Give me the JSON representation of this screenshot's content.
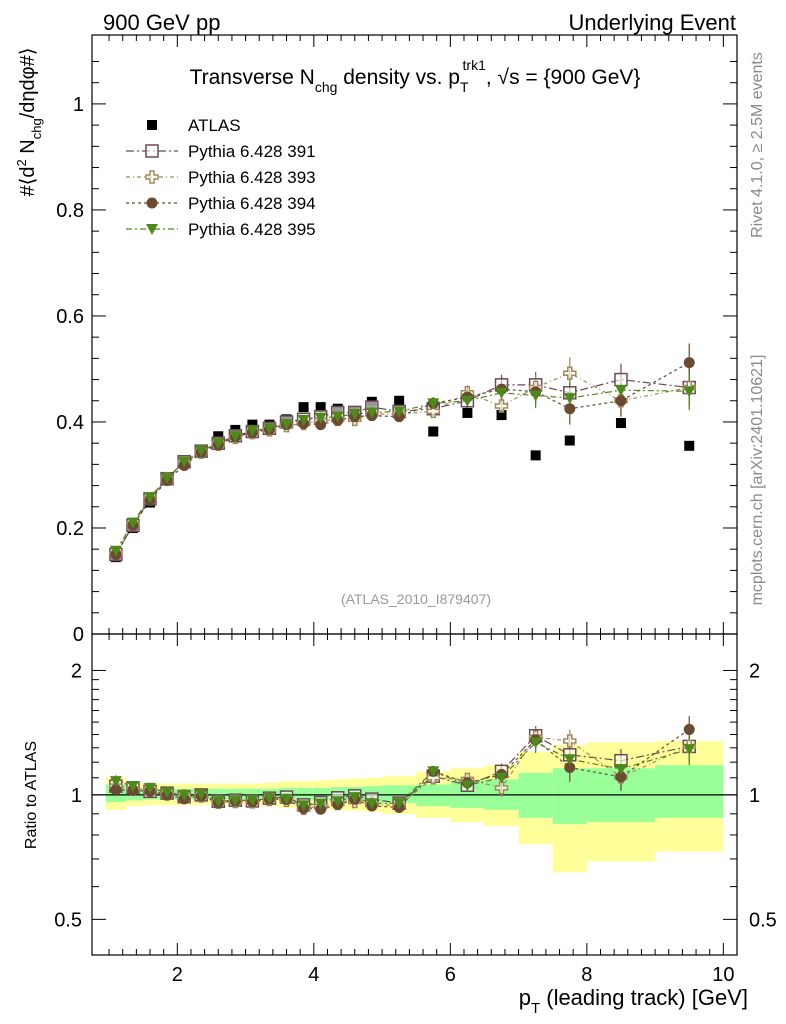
{
  "header": {
    "left": "900 GeV pp",
    "right": "Underlying Event"
  },
  "side_labels": {
    "rivet": "Rivet 4.1.0, ≥ 2.5M events",
    "mcplots": "mcplots.cern.ch [arXiv:2401.10621]"
  },
  "chart_data": [
    {
      "type": "scatter",
      "panel": "main",
      "title_parts": {
        "t1": "Transverse N",
        "t1_sub": "chg",
        "t2": " density vs. p",
        "t2_sub": "T",
        "t2_sup": "trk1",
        "t3": ", √s = {900 GeV}"
      },
      "ylabel_parts": {
        "p1": "#⟨d",
        "p1_sup": "2",
        "p2": " N",
        "p2_sub": "chg",
        "p3": "/dηdφ#⟩"
      },
      "analysis_tag": "(ATLAS_2010_I879407)",
      "xlim": [
        0.75,
        10.2
      ],
      "ylim": [
        0,
        1.13
      ],
      "yticks": [
        0,
        0.2,
        0.4,
        0.6,
        0.8,
        1
      ],
      "ytick_labels": [
        "0",
        "0.2",
        "0.4",
        "0.6",
        "0.8",
        "1"
      ],
      "x": [
        1.1,
        1.35,
        1.6,
        1.85,
        2.1,
        2.35,
        2.6,
        2.85,
        3.1,
        3.35,
        3.6,
        3.85,
        4.1,
        4.35,
        4.6,
        4.85,
        5.25,
        5.75,
        6.25,
        6.75,
        7.25,
        7.75,
        8.5,
        9.5
      ],
      "series": [
        {
          "name": "ATLAS",
          "marker": "filled-square",
          "color": "#000000",
          "values": [
            0.145,
            0.2,
            0.248,
            0.29,
            0.325,
            0.345,
            0.373,
            0.385,
            0.395,
            0.395,
            0.405,
            0.428,
            0.428,
            0.425,
            0.42,
            0.438,
            0.44,
            0.382,
            0.417,
            0.413,
            0.337,
            0.365,
            0.398,
            0.355
          ]
        },
        {
          "name": "Pythia 6.428 391",
          "marker": "open-square",
          "color": "#6b4a5a",
          "values": [
            0.15,
            0.205,
            0.255,
            0.293,
            0.325,
            0.345,
            0.36,
            0.374,
            0.382,
            0.388,
            0.4,
            0.405,
            0.41,
            0.418,
            0.418,
            0.428,
            0.42,
            0.425,
            0.44,
            0.47,
            0.47,
            0.455,
            0.48,
            0.465
          ]
        },
        {
          "name": "Pythia 6.428 393",
          "marker": "open-cross",
          "color": "#a08a5a",
          "values": [
            0.152,
            0.207,
            0.255,
            0.292,
            0.323,
            0.343,
            0.358,
            0.371,
            0.38,
            0.385,
            0.393,
            0.397,
            0.402,
            0.405,
            0.405,
            0.415,
            0.415,
            0.42,
            0.455,
            0.43,
            0.465,
            0.492,
            0.44,
            0.465
          ]
        },
        {
          "name": "Pythia 6.428 394",
          "marker": "filled-circle",
          "color": "#6b4a32",
          "values": [
            0.15,
            0.205,
            0.252,
            0.29,
            0.318,
            0.343,
            0.357,
            0.372,
            0.38,
            0.386,
            0.395,
            0.397,
            0.395,
            0.403,
            0.41,
            0.412,
            0.41,
            0.435,
            0.447,
            0.462,
            0.457,
            0.425,
            0.44,
            0.512
          ]
        },
        {
          "name": "Pythia 6.428 395",
          "marker": "filled-triangle-down",
          "color": "#4d8a1a",
          "values": [
            0.157,
            0.21,
            0.258,
            0.294,
            0.325,
            0.346,
            0.36,
            0.373,
            0.384,
            0.388,
            0.396,
            0.404,
            0.408,
            0.41,
            0.415,
            0.418,
            0.42,
            0.435,
            0.44,
            0.455,
            0.45,
            0.445,
            0.46,
            0.458
          ]
        }
      ],
      "errors": [
        0.004,
        0.004,
        0.004,
        0.004,
        0.004,
        0.004,
        0.005,
        0.005,
        0.005,
        0.006,
        0.006,
        0.006,
        0.007,
        0.007,
        0.008,
        0.008,
        0.008,
        0.01,
        0.012,
        0.016,
        0.02,
        0.025,
        0.025,
        0.03
      ]
    },
    {
      "type": "scatter",
      "panel": "ratio",
      "ylabel": "Ratio to ATLAS",
      "xlabel": "p",
      "xlabel_sub": "T",
      "xlabel_rest": " (leading track) [GeV]",
      "xlim": [
        0.75,
        10.2
      ],
      "ylim": [
        0.41,
        2.45
      ],
      "yscale": "log",
      "yticks": [
        0.5,
        1,
        2
      ],
      "ytick_labels": [
        "0.5",
        "1",
        "2"
      ],
      "xticks": [
        2,
        4,
        6,
        8,
        10
      ],
      "xtick_labels": [
        "2",
        "4",
        "6",
        "8",
        "10"
      ],
      "bins": [
        [
          0.95,
          1.25
        ],
        [
          1.25,
          1.5
        ],
        [
          1.5,
          1.75
        ],
        [
          1.75,
          2.0
        ],
        [
          2.0,
          2.25
        ],
        [
          2.25,
          2.5
        ],
        [
          2.5,
          2.75
        ],
        [
          2.75,
          3.0
        ],
        [
          3.0,
          3.25
        ],
        [
          3.25,
          3.5
        ],
        [
          3.5,
          3.75
        ],
        [
          3.75,
          4.0
        ],
        [
          4.0,
          4.25
        ],
        [
          4.25,
          4.5
        ],
        [
          4.5,
          4.75
        ],
        [
          4.75,
          5.0
        ],
        [
          5.0,
          5.5
        ],
        [
          5.5,
          6.0
        ],
        [
          6.0,
          6.5
        ],
        [
          6.5,
          7.0
        ],
        [
          7.0,
          7.5
        ],
        [
          7.5,
          8.0
        ],
        [
          8.0,
          9.0
        ],
        [
          9.0,
          10.0
        ]
      ],
      "band_inner": [
        [
          0.96,
          1.06
        ],
        [
          0.97,
          1.04
        ],
        [
          0.975,
          1.035
        ],
        [
          0.975,
          1.035
        ],
        [
          0.975,
          1.035
        ],
        [
          0.975,
          1.035
        ],
        [
          0.975,
          1.035
        ],
        [
          0.975,
          1.035
        ],
        [
          0.975,
          1.035
        ],
        [
          0.975,
          1.035
        ],
        [
          0.97,
          1.04
        ],
        [
          0.97,
          1.04
        ],
        [
          0.97,
          1.04
        ],
        [
          0.965,
          1.045
        ],
        [
          0.965,
          1.045
        ],
        [
          0.96,
          1.05
        ],
        [
          0.955,
          1.055
        ],
        [
          0.94,
          1.06
        ],
        [
          0.93,
          1.08
        ],
        [
          0.92,
          1.09
        ],
        [
          0.88,
          1.13
        ],
        [
          0.85,
          1.16
        ],
        [
          0.86,
          1.16
        ],
        [
          0.88,
          1.18
        ]
      ],
      "band_outer": [
        [
          0.92,
          1.1
        ],
        [
          0.94,
          1.07
        ],
        [
          0.945,
          1.065
        ],
        [
          0.945,
          1.065
        ],
        [
          0.945,
          1.065
        ],
        [
          0.945,
          1.065
        ],
        [
          0.945,
          1.065
        ],
        [
          0.945,
          1.065
        ],
        [
          0.945,
          1.065
        ],
        [
          0.94,
          1.07
        ],
        [
          0.93,
          1.08
        ],
        [
          0.93,
          1.08
        ],
        [
          0.925,
          1.085
        ],
        [
          0.92,
          1.09
        ],
        [
          0.915,
          1.095
        ],
        [
          0.91,
          1.1
        ],
        [
          0.9,
          1.11
        ],
        [
          0.88,
          1.14
        ],
        [
          0.86,
          1.16
        ],
        [
          0.84,
          1.18
        ],
        [
          0.76,
          1.27
        ],
        [
          0.65,
          1.32
        ],
        [
          0.69,
          1.34
        ],
        [
          0.73,
          1.35
        ]
      ],
      "series": [
        {
          "name": "Pythia 6.428 391",
          "values": [
            1.05,
            1.04,
            1.02,
            1.01,
            0.99,
            1.0,
            0.965,
            0.971,
            0.967,
            0.982,
            0.988,
            0.946,
            0.958,
            0.984,
            0.995,
            0.977,
            0.955,
            1.11,
            1.055,
            1.14,
            1.39,
            1.25,
            1.21,
            1.31
          ]
        },
        {
          "name": "Pythia 6.428 393",
          "values": [
            1.05,
            1.035,
            1.03,
            1.005,
            0.994,
            0.994,
            0.96,
            0.964,
            0.962,
            0.975,
            0.97,
            0.928,
            0.939,
            0.953,
            0.964,
            0.948,
            0.943,
            1.1,
            1.09,
            1.04,
            1.38,
            1.35,
            1.105,
            1.31
          ]
        },
        {
          "name": "Pythia 6.428 394",
          "values": [
            1.03,
            1.025,
            1.02,
            1.0,
            0.978,
            0.994,
            0.957,
            0.966,
            0.962,
            0.977,
            0.975,
            0.928,
            0.923,
            0.948,
            0.976,
            0.941,
            0.932,
            1.14,
            1.07,
            1.12,
            1.36,
            1.165,
            1.105,
            1.44
          ]
        },
        {
          "name": "Pythia 6.428 395",
          "values": [
            1.08,
            1.05,
            1.04,
            1.014,
            1.0,
            1.003,
            0.965,
            0.969,
            0.972,
            0.982,
            0.978,
            0.944,
            0.953,
            0.965,
            0.988,
            0.954,
            0.955,
            1.14,
            1.055,
            1.1,
            1.34,
            1.22,
            1.155,
            1.29
          ]
        }
      ]
    }
  ]
}
